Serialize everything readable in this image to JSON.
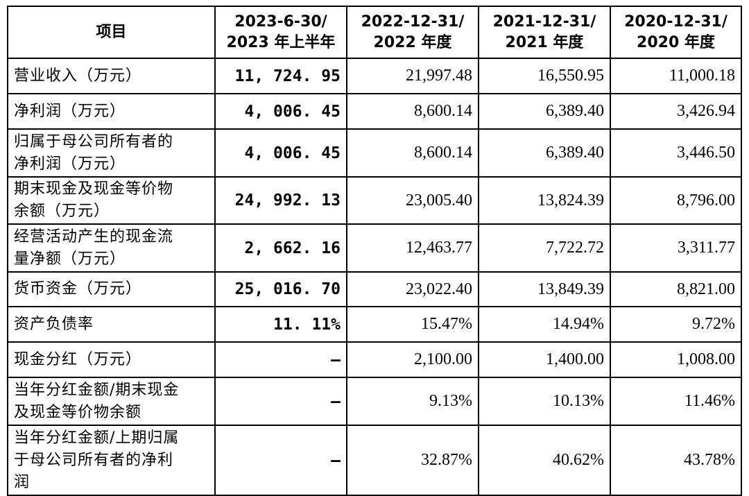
{
  "headers": [
    {
      "line1": "项目",
      "line2": ""
    },
    {
      "line1": "2023-6-30/",
      "line2": "2023 年上半年"
    },
    {
      "line1": "2022-12-31/",
      "line2": "2022 年度"
    },
    {
      "line1": "2021-12-31/",
      "line2": "2021 年度"
    },
    {
      "line1": "2020-12-31/",
      "line2": "2020 年度"
    }
  ],
  "rows": [
    {
      "label": [
        "营业收入（万元）"
      ],
      "values": [
        "11, 724. 95",
        "21,997.48",
        "16,550.95",
        "11,000.18"
      ]
    },
    {
      "label": [
        "净利润（万元）"
      ],
      "values": [
        "4, 006. 45",
        "8,600.14",
        "6,389.40",
        "3,426.94"
      ]
    },
    {
      "label": [
        "归属于母公司所有者的",
        "净利润（万元）"
      ],
      "values": [
        "4, 006. 45",
        "8,600.14",
        "6,389.40",
        "3,446.50"
      ]
    },
    {
      "label": [
        "期末现金及现金等价物",
        "余额（万元）"
      ],
      "values": [
        "24, 992. 13",
        "23,005.40",
        "13,824.39",
        "8,796.00"
      ]
    },
    {
      "label": [
        "经营活动产生的现金流",
        "量净额（万元）"
      ],
      "values": [
        "2, 662. 16",
        "12,463.77",
        "7,722.72",
        "3,311.77"
      ]
    },
    {
      "label": [
        "货币资金（万元）"
      ],
      "values": [
        "25, 016. 70",
        "23,022.40",
        "13,849.39",
        "8,821.00"
      ]
    },
    {
      "label": [
        "资产负债率"
      ],
      "values": [
        "11. 11%",
        "15.47%",
        "14.94%",
        "9.72%"
      ]
    },
    {
      "label": [
        "现金分红（万元）"
      ],
      "values": [
        "–",
        "2,100.00",
        "1,400.00",
        "1,008.00"
      ]
    },
    {
      "label": [
        "当年分红金额/期末现金",
        "及现金等价物余额"
      ],
      "values": [
        "–",
        "9.13%",
        "10.13%",
        "11.46%"
      ]
    },
    {
      "label": [
        "当年分红金额/上期归属",
        "于母公司所有者的净利",
        "润"
      ],
      "values": [
        "–",
        "32.87%",
        "40.62%",
        "43.78%"
      ]
    }
  ]
}
